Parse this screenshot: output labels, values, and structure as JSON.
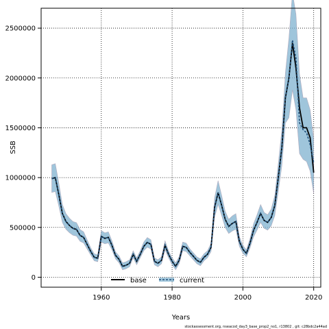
{
  "chart_data": {
    "type": "line",
    "xlabel": "Years",
    "ylabel": "SSB",
    "xlim": [
      1943,
      2022
    ],
    "ylim": [
      -100000,
      2700000
    ],
    "x_ticks": [
      1960,
      1980,
      2000,
      2020
    ],
    "y_ticks": [
      0,
      500000,
      1000000,
      1500000,
      2000000,
      2500000
    ],
    "y_tick_labels": [
      "0",
      "500000",
      "1000000",
      "1500000",
      "2000000",
      "2500000"
    ],
    "grid": true,
    "legend_position": "bottom-left",
    "colors": {
      "band": "#7fb2cf",
      "base": "#000000",
      "current": "#1f4f7a"
    },
    "x": [
      1946,
      1947,
      1948,
      1949,
      1950,
      1951,
      1952,
      1953,
      1954,
      1955,
      1956,
      1957,
      1958,
      1959,
      1960,
      1961,
      1962,
      1963,
      1964,
      1965,
      1966,
      1967,
      1968,
      1969,
      1970,
      1971,
      1972,
      1973,
      1974,
      1975,
      1976,
      1977,
      1978,
      1979,
      1980,
      1981,
      1982,
      1983,
      1984,
      1985,
      1986,
      1987,
      1988,
      1989,
      1990,
      1991,
      1992,
      1993,
      1994,
      1995,
      1996,
      1997,
      1998,
      1999,
      2000,
      2001,
      2002,
      2003,
      2004,
      2005,
      2006,
      2007,
      2008,
      2009,
      2010,
      2011,
      2012,
      2013,
      2014,
      2015,
      2016,
      2017,
      2018,
      2019,
      2020
    ],
    "series": [
      {
        "name": "base",
        "style": "solid",
        "values": [
          990000,
          1000000,
          830000,
          640000,
          560000,
          520000,
          490000,
          480000,
          420000,
          400000,
          330000,
          260000,
          200000,
          190000,
          410000,
          390000,
          400000,
          320000,
          220000,
          180000,
          110000,
          120000,
          140000,
          230000,
          160000,
          230000,
          310000,
          350000,
          330000,
          160000,
          140000,
          170000,
          320000,
          230000,
          160000,
          110000,
          170000,
          310000,
          300000,
          250000,
          210000,
          170000,
          150000,
          200000,
          230000,
          300000,
          700000,
          850000,
          720000,
          580000,
          510000,
          540000,
          560000,
          360000,
          280000,
          240000,
          340000,
          470000,
          550000,
          640000,
          570000,
          550000,
          600000,
          720000,
          1000000,
          1300000,
          1800000,
          2000000,
          2350000,
          2100000,
          1700000,
          1500000,
          1500000,
          1400000,
          1050000
        ]
      },
      {
        "name": "current",
        "style": "dashed",
        "values": [
          990000,
          1000000,
          830000,
          640000,
          560000,
          520000,
          490000,
          480000,
          420000,
          400000,
          330000,
          260000,
          200000,
          190000,
          410000,
          390000,
          400000,
          320000,
          220000,
          180000,
          110000,
          120000,
          140000,
          230000,
          160000,
          230000,
          310000,
          350000,
          330000,
          160000,
          140000,
          170000,
          320000,
          230000,
          160000,
          110000,
          170000,
          310000,
          300000,
          250000,
          210000,
          170000,
          150000,
          200000,
          230000,
          300000,
          700000,
          850000,
          720000,
          580000,
          510000,
          540000,
          560000,
          360000,
          280000,
          240000,
          340000,
          470000,
          550000,
          640000,
          570000,
          550000,
          600000,
          720000,
          1000000,
          1300000,
          1800000,
          2000000,
          2380000,
          2200000,
          1550000,
          1480000,
          1450000,
          1330000,
          1150000
        ]
      }
    ]
  },
  "footnote": "stockassessment.org, nseacod_day3_base_prop2_no1, r13802 , git: c28bdc2a44ad"
}
